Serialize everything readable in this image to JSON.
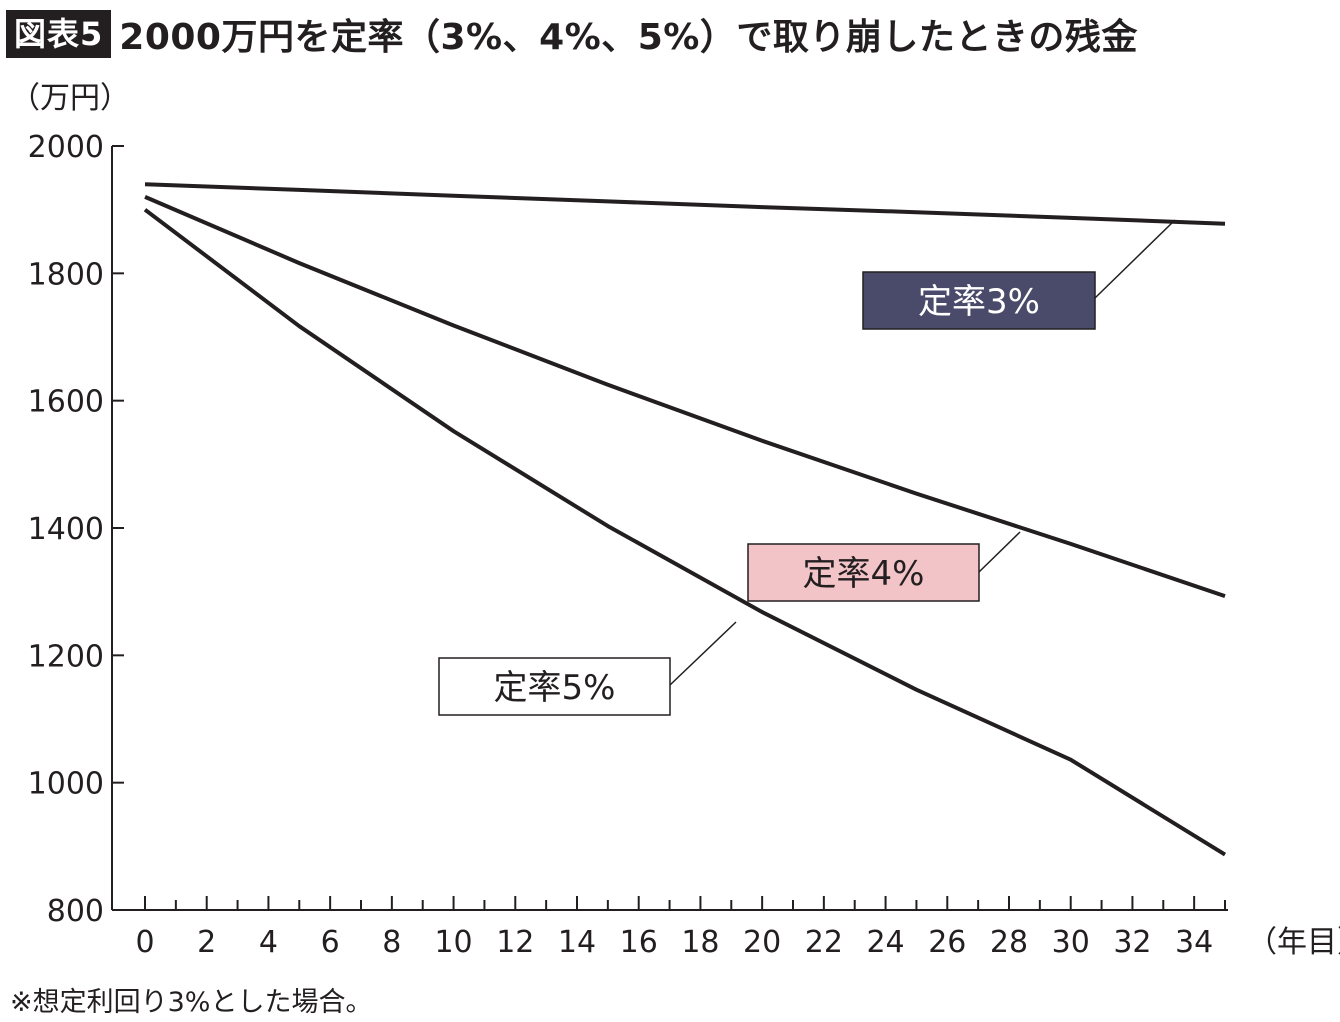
{
  "header": {
    "badge": "図表5",
    "title": "2000万円を定率（3%、4%、5%）で取り崩したときの残金"
  },
  "footnote": "※想定利回り3%とした場合。",
  "chart_data": {
    "type": "line",
    "title": "2000万円を定率（3%、4%、5%）で取り崩したときの残金",
    "ylabel": "（万円）",
    "xlabel": "（年目）",
    "ylim": [
      800,
      2000
    ],
    "yticks": [
      800,
      1000,
      1200,
      1400,
      1600,
      1800,
      2000
    ],
    "xlim": [
      0,
      35
    ],
    "xticks": [
      0,
      2,
      4,
      6,
      8,
      10,
      12,
      14,
      16,
      18,
      20,
      22,
      24,
      26,
      28,
      30,
      32,
      34
    ],
    "grid": false,
    "legend": "inline callout labels",
    "x": [
      0,
      5,
      10,
      15,
      20,
      25,
      30,
      35
    ],
    "series": [
      {
        "name": "定率3%",
        "label_bg": "#4a4a6a",
        "label_fg": "#ffffff",
        "values": [
          1940,
          1931,
          1922,
          1913,
          1904,
          1896,
          1887,
          1878
        ]
      },
      {
        "name": "定率4%",
        "label_bg": "#f2c4c8",
        "label_fg": "#231f20",
        "values": [
          1920,
          1816,
          1718,
          1625,
          1537,
          1454,
          1375,
          1293
        ]
      },
      {
        "name": "定率5%",
        "label_bg": "#ffffff",
        "label_fg": "#231f20",
        "values": [
          1900,
          1717,
          1552,
          1403,
          1268,
          1146,
          1036,
          887
        ]
      }
    ]
  }
}
